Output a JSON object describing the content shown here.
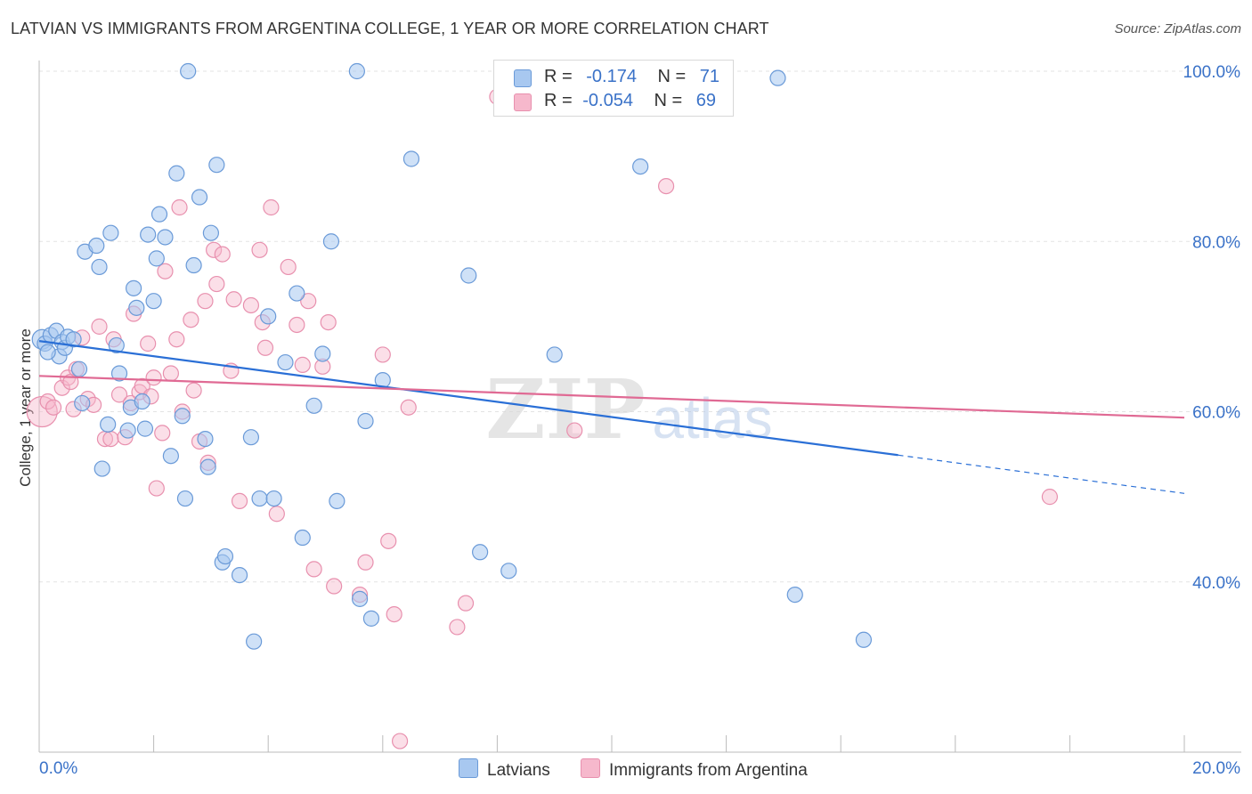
{
  "title": "LATVIAN VS IMMIGRANTS FROM ARGENTINA COLLEGE, 1 YEAR OR MORE CORRELATION CHART",
  "source": "Source: ZipAtlas.com",
  "watermark": {
    "zip": "ZIP",
    "atlas": "atlas"
  },
  "colors": {
    "latvians_fill": "#a8c8f0",
    "latvians_stroke": "#6a9ad8",
    "latvians_line": "#2a6fd6",
    "argentina_fill": "#f6b8cc",
    "argentina_stroke": "#e890ae",
    "argentina_line": "#e06a94",
    "tick_label": "#3a72c8"
  },
  "legend": {
    "rows": [
      {
        "r_label": "R =",
        "r_value": "-0.174",
        "n_label": "N =",
        "n_value": "71"
      },
      {
        "r_label": "R =",
        "r_value": "-0.054",
        "n_label": "N =",
        "n_value": "69"
      }
    ]
  },
  "chart_data": {
    "type": "scatter",
    "ylabel": "College, 1 year or more",
    "xlim": [
      0,
      20
    ],
    "ylim": [
      20,
      100
    ],
    "x_tick_labels": [
      "0.0%",
      "20.0%"
    ],
    "y_ticks": [
      40,
      60,
      80,
      100
    ],
    "y_tick_labels": [
      "40.0%",
      "60.0%",
      "80.0%",
      "100.0%"
    ],
    "grid": true,
    "legend_position": "top-center",
    "series": [
      {
        "name": "Latvians",
        "trend": {
          "x": [
            0,
            15
          ],
          "y": [
            68.3,
            54.9
          ],
          "dashed_to": [
            20,
            50.4
          ]
        },
        "points": [
          [
            0.05,
            68.5
          ],
          [
            0.1,
            68.0
          ],
          [
            0.2,
            69.0
          ],
          [
            0.3,
            69.5
          ],
          [
            0.35,
            66.5
          ],
          [
            0.4,
            68.2
          ],
          [
            0.45,
            67.5
          ],
          [
            0.5,
            68.8
          ],
          [
            0.6,
            68.5
          ],
          [
            0.7,
            65.0
          ],
          [
            0.75,
            61.0
          ],
          [
            0.8,
            78.8
          ],
          [
            1.0,
            79.5
          ],
          [
            1.05,
            77.0
          ],
          [
            1.1,
            53.3
          ],
          [
            1.2,
            58.5
          ],
          [
            1.25,
            81.0
          ],
          [
            1.35,
            67.8
          ],
          [
            1.4,
            64.5
          ],
          [
            1.55,
            57.8
          ],
          [
            1.6,
            60.5
          ],
          [
            1.65,
            74.5
          ],
          [
            1.7,
            72.2
          ],
          [
            1.8,
            61.2
          ],
          [
            1.85,
            58.0
          ],
          [
            1.9,
            80.8
          ],
          [
            2.0,
            73.0
          ],
          [
            2.05,
            78.0
          ],
          [
            2.1,
            83.2
          ],
          [
            2.2,
            80.5
          ],
          [
            2.3,
            54.8
          ],
          [
            2.4,
            88.0
          ],
          [
            2.5,
            59.5
          ],
          [
            2.55,
            49.8
          ],
          [
            2.6,
            100.0
          ],
          [
            2.7,
            77.2
          ],
          [
            2.8,
            85.2
          ],
          [
            2.9,
            56.8
          ],
          [
            2.95,
            53.5
          ],
          [
            3.0,
            81.0
          ],
          [
            3.1,
            89.0
          ],
          [
            3.2,
            42.3
          ],
          [
            3.25,
            43.0
          ],
          [
            3.5,
            40.8
          ],
          [
            3.7,
            57.0
          ],
          [
            3.75,
            33.0
          ],
          [
            3.85,
            49.8
          ],
          [
            4.0,
            71.2
          ],
          [
            4.1,
            49.8
          ],
          [
            4.3,
            65.8
          ],
          [
            4.5,
            73.9
          ],
          [
            4.6,
            45.2
          ],
          [
            4.8,
            60.7
          ],
          [
            4.95,
            66.8
          ],
          [
            5.1,
            80.0
          ],
          [
            5.2,
            49.5
          ],
          [
            5.55,
            100.0
          ],
          [
            5.6,
            38.0
          ],
          [
            5.7,
            58.9
          ],
          [
            5.8,
            35.7
          ],
          [
            6.0,
            63.7
          ],
          [
            6.5,
            89.7
          ],
          [
            7.5,
            76.0
          ],
          [
            7.7,
            43.5
          ],
          [
            8.2,
            41.3
          ],
          [
            9.0,
            66.7
          ],
          [
            10.5,
            88.8
          ],
          [
            12.9,
            99.2
          ],
          [
            13.2,
            38.5
          ],
          [
            14.4,
            33.2
          ],
          [
            0.15,
            67.0
          ]
        ]
      },
      {
        "name": "Immigrants from Argentina",
        "trend": {
          "x": [
            0,
            20
          ],
          "y": [
            64.2,
            59.3
          ]
        },
        "points": [
          [
            0.05,
            60.0
          ],
          [
            0.15,
            61.2
          ],
          [
            0.25,
            60.5
          ],
          [
            0.4,
            62.8
          ],
          [
            0.5,
            64.0
          ],
          [
            0.55,
            63.5
          ],
          [
            0.6,
            60.3
          ],
          [
            0.65,
            65.0
          ],
          [
            0.75,
            68.7
          ],
          [
            0.85,
            61.5
          ],
          [
            0.95,
            60.8
          ],
          [
            1.05,
            70.0
          ],
          [
            1.15,
            56.8
          ],
          [
            1.25,
            56.8
          ],
          [
            1.3,
            68.5
          ],
          [
            1.4,
            62.0
          ],
          [
            1.5,
            57.0
          ],
          [
            1.6,
            61.0
          ],
          [
            1.65,
            71.5
          ],
          [
            1.75,
            62.3
          ],
          [
            1.8,
            63.0
          ],
          [
            1.9,
            68.0
          ],
          [
            1.95,
            61.8
          ],
          [
            2.0,
            64.0
          ],
          [
            2.05,
            51.0
          ],
          [
            2.15,
            57.5
          ],
          [
            2.2,
            76.5
          ],
          [
            2.3,
            64.5
          ],
          [
            2.4,
            68.5
          ],
          [
            2.45,
            84.0
          ],
          [
            2.5,
            60.0
          ],
          [
            2.65,
            70.8
          ],
          [
            2.7,
            62.5
          ],
          [
            2.8,
            56.5
          ],
          [
            2.9,
            73.0
          ],
          [
            2.95,
            54.0
          ],
          [
            3.05,
            79.0
          ],
          [
            3.1,
            75.0
          ],
          [
            3.2,
            78.5
          ],
          [
            3.35,
            64.8
          ],
          [
            3.4,
            73.2
          ],
          [
            3.5,
            49.5
          ],
          [
            3.7,
            72.5
          ],
          [
            3.85,
            79.0
          ],
          [
            3.9,
            70.5
          ],
          [
            3.95,
            67.5
          ],
          [
            4.05,
            84.0
          ],
          [
            4.15,
            48.0
          ],
          [
            4.35,
            77.0
          ],
          [
            4.5,
            70.2
          ],
          [
            4.6,
            65.5
          ],
          [
            4.7,
            73.0
          ],
          [
            4.8,
            41.5
          ],
          [
            4.95,
            65.3
          ],
          [
            5.05,
            70.5
          ],
          [
            5.15,
            39.5
          ],
          [
            5.6,
            38.5
          ],
          [
            5.7,
            42.3
          ],
          [
            6.0,
            66.7
          ],
          [
            6.1,
            44.8
          ],
          [
            6.2,
            36.2
          ],
          [
            6.3,
            21.3
          ],
          [
            6.45,
            60.5
          ],
          [
            7.3,
            34.7
          ],
          [
            7.45,
            37.5
          ],
          [
            8.0,
            97.0
          ],
          [
            9.35,
            57.8
          ],
          [
            10.95,
            86.5
          ],
          [
            17.65,
            50.0
          ]
        ]
      }
    ]
  },
  "bottom_legend": [
    "Latvians",
    "Immigrants from Argentina"
  ]
}
